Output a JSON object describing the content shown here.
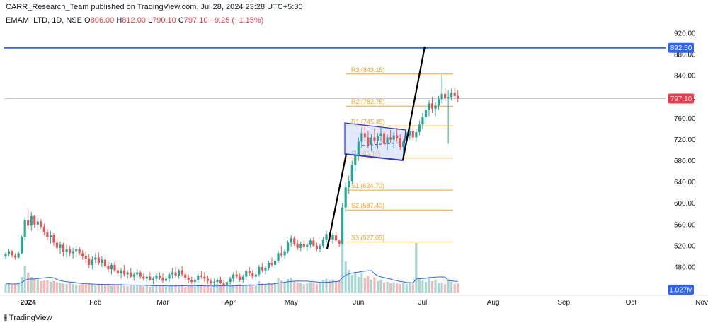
{
  "header": {
    "publish_text": "CARR_Research_Team published on TradingView.com, Jul 28, 2024 23:28 UTC+5:30",
    "symbol": "EMAMI LTD, 1D, NSE",
    "o_label": "O",
    "o_value": "806.00",
    "h_label": "H",
    "h_value": "812.00",
    "l_label": "L",
    "l_value": "790.10",
    "c_label": "C",
    "c_value": "797.10",
    "change": "−9.25 (−1.15%)"
  },
  "footer": {
    "brand": "TradingView"
  },
  "colors": {
    "up": "#26a69a",
    "down": "#ef5350",
    "pivot": "#f7a21b",
    "resistance_line": "#2962ff",
    "price_badge": "#f23645",
    "volume_up": "#a6d8d3",
    "volume_down": "#f7b6b4",
    "volume_ma": "#2962ff",
    "channel_fill": "#c9d6ff"
  },
  "chart_data": {
    "type": "candlestick",
    "y_axis": {
      "ticks": [
        "920.00",
        "880.00",
        "840.00",
        "800.00",
        "760.00",
        "720.00",
        "680.00",
        "640.00",
        "600.00",
        "560.00",
        "520.00",
        "480.00"
      ],
      "range": [
        452,
        932
      ],
      "position": "right"
    },
    "x_axis": {
      "labels": [
        "2024",
        "Feb",
        "Mar",
        "Apr",
        "May",
        "Jun",
        "Jul",
        "Aug",
        "Sep",
        "Oct",
        "Nov"
      ],
      "label_positions_index": [
        7,
        28,
        49,
        70,
        89,
        110,
        130,
        152,
        174,
        195,
        217
      ]
    },
    "price_labels": {
      "resistance": "892.50",
      "last_price": "797.10",
      "volume": "1.027M"
    },
    "pivot_levels": [
      {
        "label": "R3 (843.15)",
        "value": 843.15
      },
      {
        "label": "R2 (782.75)",
        "value": 782.75
      },
      {
        "label": "R1 (745.45)",
        "value": 745.45
      },
      {
        "label": "P (685.10)",
        "value": 685.1
      },
      {
        "label": "S1 (624.70)",
        "value": 624.7
      },
      {
        "label": "S2 (587.40)",
        "value": 587.4
      },
      {
        "label": "S3 (527.05)",
        "value": 527.05
      }
    ],
    "horizontal_lines": [
      {
        "value": 892.5
      },
      {
        "value": 800
      }
    ],
    "candles": [
      [
        500,
        508,
        495,
        504
      ],
      [
        504,
        515,
        500,
        510
      ],
      [
        510,
        512,
        498,
        502
      ],
      [
        502,
        506,
        494,
        498
      ],
      [
        498,
        510,
        496,
        506
      ],
      [
        506,
        540,
        504,
        536
      ],
      [
        536,
        574,
        530,
        568
      ],
      [
        568,
        590,
        552,
        558
      ],
      [
        558,
        584,
        548,
        576
      ],
      [
        576,
        578,
        554,
        560
      ],
      [
        560,
        572,
        548,
        566
      ],
      [
        566,
        570,
        552,
        556
      ],
      [
        556,
        562,
        540,
        546
      ],
      [
        546,
        552,
        530,
        536
      ],
      [
        536,
        548,
        524,
        540
      ],
      [
        540,
        544,
        520,
        526
      ],
      [
        526,
        534,
        510,
        516
      ],
      [
        516,
        528,
        504,
        522
      ],
      [
        522,
        526,
        500,
        508
      ],
      [
        508,
        522,
        498,
        514
      ],
      [
        514,
        520,
        500,
        506
      ],
      [
        506,
        516,
        496,
        510
      ],
      [
        510,
        520,
        498,
        514
      ],
      [
        514,
        518,
        502,
        506
      ],
      [
        506,
        512,
        494,
        500
      ],
      [
        500,
        510,
        488,
        496
      ],
      [
        496,
        504,
        478,
        484
      ],
      [
        484,
        500,
        476,
        494
      ],
      [
        494,
        506,
        488,
        498
      ],
      [
        498,
        508,
        484,
        488
      ],
      [
        488,
        500,
        480,
        494
      ],
      [
        494,
        498,
        478,
        482
      ],
      [
        482,
        490,
        470,
        476
      ],
      [
        476,
        488,
        466,
        484
      ],
      [
        484,
        490,
        470,
        474
      ],
      [
        474,
        480,
        462,
        468
      ],
      [
        468,
        478,
        458,
        474
      ],
      [
        474,
        484,
        462,
        466
      ],
      [
        466,
        474,
        458,
        470
      ],
      [
        470,
        478,
        460,
        462
      ],
      [
        462,
        470,
        454,
        466
      ],
      [
        466,
        476,
        460,
        470
      ],
      [
        470,
        474,
        458,
        462
      ],
      [
        462,
        468,
        454,
        458
      ],
      [
        458,
        466,
        452,
        462
      ],
      [
        462,
        470,
        454,
        456
      ],
      [
        456,
        462,
        448,
        458
      ],
      [
        458,
        468,
        452,
        464
      ],
      [
        464,
        470,
        456,
        460
      ],
      [
        460,
        468,
        450,
        454
      ],
      [
        454,
        462,
        448,
        458
      ],
      [
        458,
        470,
        452,
        466
      ],
      [
        466,
        478,
        458,
        470
      ],
      [
        470,
        480,
        460,
        464
      ],
      [
        464,
        476,
        458,
        474
      ],
      [
        474,
        482,
        462,
        466
      ],
      [
        466,
        470,
        454,
        460
      ],
      [
        460,
        466,
        450,
        456
      ],
      [
        456,
        462,
        448,
        452
      ],
      [
        452,
        460,
        446,
        456
      ],
      [
        456,
        468,
        450,
        464
      ],
      [
        464,
        472,
        458,
        462
      ],
      [
        462,
        470,
        452,
        458
      ],
      [
        458,
        464,
        448,
        454
      ],
      [
        454,
        458,
        446,
        450
      ],
      [
        450,
        458,
        444,
        452
      ],
      [
        452,
        460,
        446,
        456
      ],
      [
        456,
        462,
        448,
        450
      ],
      [
        450,
        456,
        442,
        446
      ],
      [
        446,
        454,
        440,
        452
      ],
      [
        452,
        462,
        446,
        458
      ],
      [
        458,
        470,
        452,
        466
      ],
      [
        466,
        474,
        458,
        462
      ],
      [
        462,
        468,
        452,
        456
      ],
      [
        456,
        466,
        450,
        462
      ],
      [
        462,
        476,
        456,
        472
      ],
      [
        472,
        480,
        464,
        468
      ],
      [
        468,
        474,
        458,
        462
      ],
      [
        462,
        470,
        454,
        466
      ],
      [
        466,
        484,
        462,
        480
      ],
      [
        480,
        488,
        470,
        474
      ],
      [
        474,
        482,
        466,
        478
      ],
      [
        478,
        492,
        474,
        488
      ],
      [
        488,
        498,
        480,
        484
      ],
      [
        484,
        496,
        478,
        492
      ],
      [
        492,
        510,
        488,
        506
      ],
      [
        506,
        520,
        498,
        502
      ],
      [
        502,
        514,
        496,
        510
      ],
      [
        510,
        530,
        506,
        526
      ],
      [
        526,
        540,
        518,
        534
      ],
      [
        534,
        538,
        520,
        524
      ],
      [
        524,
        532,
        512,
        516
      ],
      [
        516,
        528,
        510,
        524
      ],
      [
        524,
        530,
        514,
        518
      ],
      [
        518,
        526,
        510,
        522
      ],
      [
        522,
        534,
        516,
        530
      ],
      [
        530,
        536,
        518,
        520
      ],
      [
        520,
        526,
        510,
        514
      ],
      [
        514,
        524,
        508,
        520
      ],
      [
        520,
        536,
        516,
        532
      ],
      [
        532,
        548,
        526,
        542
      ],
      [
        542,
        546,
        528,
        532
      ],
      [
        532,
        544,
        524,
        540
      ],
      [
        540,
        546,
        526,
        530
      ],
      [
        530,
        532,
        518,
        524
      ],
      [
        524,
        600,
        522,
        592
      ],
      [
        592,
        640,
        584,
        630
      ],
      [
        630,
        652,
        618,
        642
      ],
      [
        642,
        680,
        636,
        672
      ],
      [
        672,
        700,
        660,
        690
      ],
      [
        690,
        724,
        680,
        716
      ],
      [
        716,
        742,
        704,
        732
      ],
      [
        732,
        752,
        718,
        724
      ],
      [
        724,
        736,
        704,
        710
      ],
      [
        710,
        730,
        698,
        724
      ],
      [
        724,
        740,
        712,
        718
      ],
      [
        718,
        732,
        702,
        726
      ],
      [
        726,
        744,
        716,
        732
      ],
      [
        732,
        736,
        706,
        712
      ],
      [
        712,
        730,
        700,
        724
      ],
      [
        724,
        738,
        714,
        720
      ],
      [
        720,
        734,
        704,
        728
      ],
      [
        728,
        742,
        716,
        722
      ],
      [
        722,
        730,
        700,
        706
      ],
      [
        706,
        720,
        694,
        716
      ],
      [
        716,
        734,
        710,
        728
      ],
      [
        728,
        746,
        720,
        736
      ],
      [
        736,
        742,
        718,
        724
      ],
      [
        724,
        740,
        716,
        734
      ],
      [
        734,
        756,
        728,
        748
      ],
      [
        748,
        770,
        740,
        762
      ],
      [
        762,
        782,
        750,
        776
      ],
      [
        776,
        794,
        764,
        788
      ],
      [
        788,
        800,
        770,
        778
      ],
      [
        778,
        790,
        764,
        784
      ],
      [
        784,
        802,
        776,
        796
      ],
      [
        796,
        842,
        788,
        806
      ],
      [
        806,
        816,
        792,
        798
      ],
      [
        798,
        812,
        712,
        800
      ],
      [
        800,
        816,
        794,
        808
      ],
      [
        808,
        818,
        796,
        802
      ],
      [
        802,
        812,
        790,
        797
      ]
    ],
    "volumes": [
      0.3,
      0.32,
      0.28,
      0.3,
      0.36,
      0.55,
      0.95,
      0.7,
      0.55,
      0.48,
      0.46,
      0.4,
      0.42,
      0.44,
      0.38,
      0.4,
      0.36,
      0.34,
      0.32,
      0.3,
      0.34,
      0.3,
      0.28,
      0.26,
      0.3,
      0.28,
      0.32,
      0.3,
      0.26,
      0.28,
      0.3,
      0.26,
      0.28,
      0.24,
      0.26,
      0.28,
      0.3,
      0.24,
      0.22,
      0.26,
      0.24,
      0.28,
      0.26,
      0.22,
      0.24,
      0.2,
      0.22,
      0.26,
      0.24,
      0.22,
      0.2,
      0.24,
      0.28,
      0.26,
      0.22,
      0.24,
      0.2,
      0.22,
      0.24,
      0.2,
      0.28,
      0.26,
      0.22,
      0.24,
      0.2,
      0.22,
      0.24,
      0.26,
      0.22,
      0.2,
      0.24,
      0.28,
      0.26,
      0.3,
      0.24,
      0.26,
      0.3,
      0.28,
      0.24,
      0.4,
      0.32,
      0.3,
      0.36,
      0.3,
      0.34,
      0.5,
      0.42,
      0.38,
      0.48,
      0.52,
      0.4,
      0.36,
      0.34,
      0.3,
      0.32,
      0.36,
      0.34,
      0.3,
      0.36,
      0.44,
      0.48,
      0.42,
      0.46,
      0.4,
      0.42,
      1.7,
      1.1,
      0.8,
      0.62,
      0.7,
      0.56,
      0.72,
      0.52,
      0.58,
      0.46,
      0.54,
      0.4,
      0.44,
      0.36,
      0.38,
      0.34,
      0.36,
      0.32,
      0.3,
      0.34,
      0.3,
      0.36,
      0.32,
      1.75,
      0.5,
      0.42,
      0.38,
      0.56,
      0.4,
      0.46,
      0.34,
      0.36,
      0.3,
      0.48,
      0.38,
      0.3,
      0.32
    ]
  }
}
